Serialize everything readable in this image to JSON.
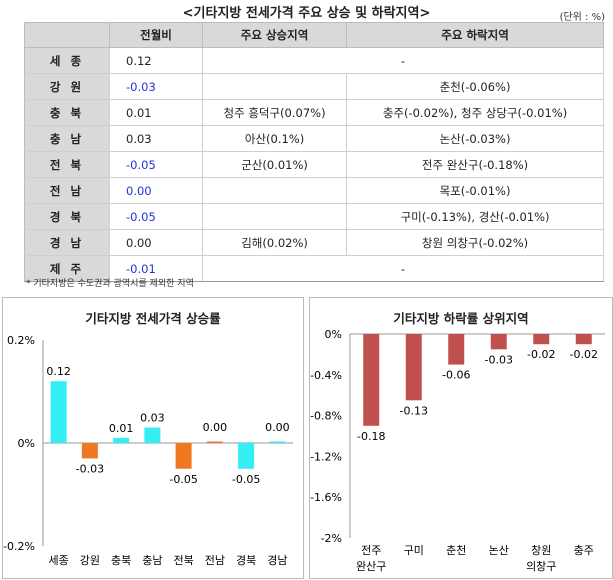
{
  "title": "<기타지방 전세가격 주요 상승 및 하락지역>",
  "unit": "(단위 : %)",
  "table": {
    "headers": [
      "",
      "전월비",
      "주요 상승지역",
      "주요 하락지역"
    ],
    "rows": [
      {
        "region": "세 종",
        "value": "0.12",
        "rise": "-",
        "fall": "",
        "merged": true
      },
      {
        "region": "강 원",
        "value": "-0.03",
        "rise": "",
        "fall": "춘천(-0.06%)"
      },
      {
        "region": "충 북",
        "value": "0.01",
        "rise": "청주 흥덕구(0.07%)",
        "fall": "충주(-0.02%), 청주 상당구(-0.01%)"
      },
      {
        "region": "충 남",
        "value": "0.03",
        "rise": "아산(0.1%)",
        "fall": "논산(-0.03%)"
      },
      {
        "region": "전 북",
        "value": "-0.05",
        "rise": "군산(0.01%)",
        "fall": "전주 완산구(-0.18%)"
      },
      {
        "region": "전 남",
        "value": "0.00",
        "rise": "",
        "fall": "목포(-0.01%)"
      },
      {
        "region": "경 북",
        "value": "-0.05",
        "rise": "",
        "fall": "구미(-0.13%), 경산(-0.01%)"
      },
      {
        "region": "경 남",
        "value": "0.00",
        "rise": "김해(0.02%)",
        "fall": "창원 의창구(-0.02%)"
      },
      {
        "region": "제 주",
        "value": "-0.01",
        "rise": "-",
        "fall": "",
        "merged": true
      }
    ]
  },
  "footnote": "* 기타지방은 수도권과 광역시를 제외한 지역",
  "colors": {
    "blue_text": "#2233dd",
    "cyan": "#33eef2",
    "orange": "#f07820",
    "red": "#c0504d"
  },
  "chart_data": [
    {
      "type": "bar",
      "title": "기타지방 전세가격 상승률",
      "categories": [
        "세종",
        "강원",
        "충북",
        "충남",
        "전북",
        "전남",
        "경북",
        "경남"
      ],
      "values": [
        0.12,
        -0.03,
        0.01,
        0.03,
        -0.05,
        0.0,
        -0.05,
        0.0
      ],
      "data_labels": [
        "0.12",
        "-0.03",
        "0.01",
        "0.03",
        "-0.05",
        "0.00",
        "-0.05",
        "0.00"
      ],
      "yticks": [
        "0.2%",
        "0%",
        "-0.2%"
      ],
      "ylim": [
        -0.2,
        0.2
      ],
      "colors": [
        "#33eef2",
        "#f07820",
        "#33eef2",
        "#33eef2",
        "#f07820",
        "#f07820",
        "#33eef2",
        "#33eef2"
      ],
      "grid": false
    },
    {
      "type": "bar",
      "title": "기타지방 하락률 상위지역",
      "categories": [
        [
          "전주",
          "완산구"
        ],
        [
          "구미"
        ],
        [
          "춘천"
        ],
        [
          "논산"
        ],
        [
          "창원",
          "의창구"
        ],
        [
          "충주"
        ]
      ],
      "values": [
        -0.18,
        -0.13,
        -0.06,
        -0.03,
        -0.02,
        -0.02
      ],
      "data_labels": [
        "-0.18",
        "-0.13",
        "-0.06",
        "-0.03",
        "-0.02",
        "-0.02"
      ],
      "yticks": [
        "0%",
        "-0.4%",
        "-0.8%",
        "-1.2%",
        "-1.6%",
        "-2%"
      ],
      "ylim": [
        -2,
        0
      ],
      "color": "#c0504d",
      "grid": false
    }
  ]
}
